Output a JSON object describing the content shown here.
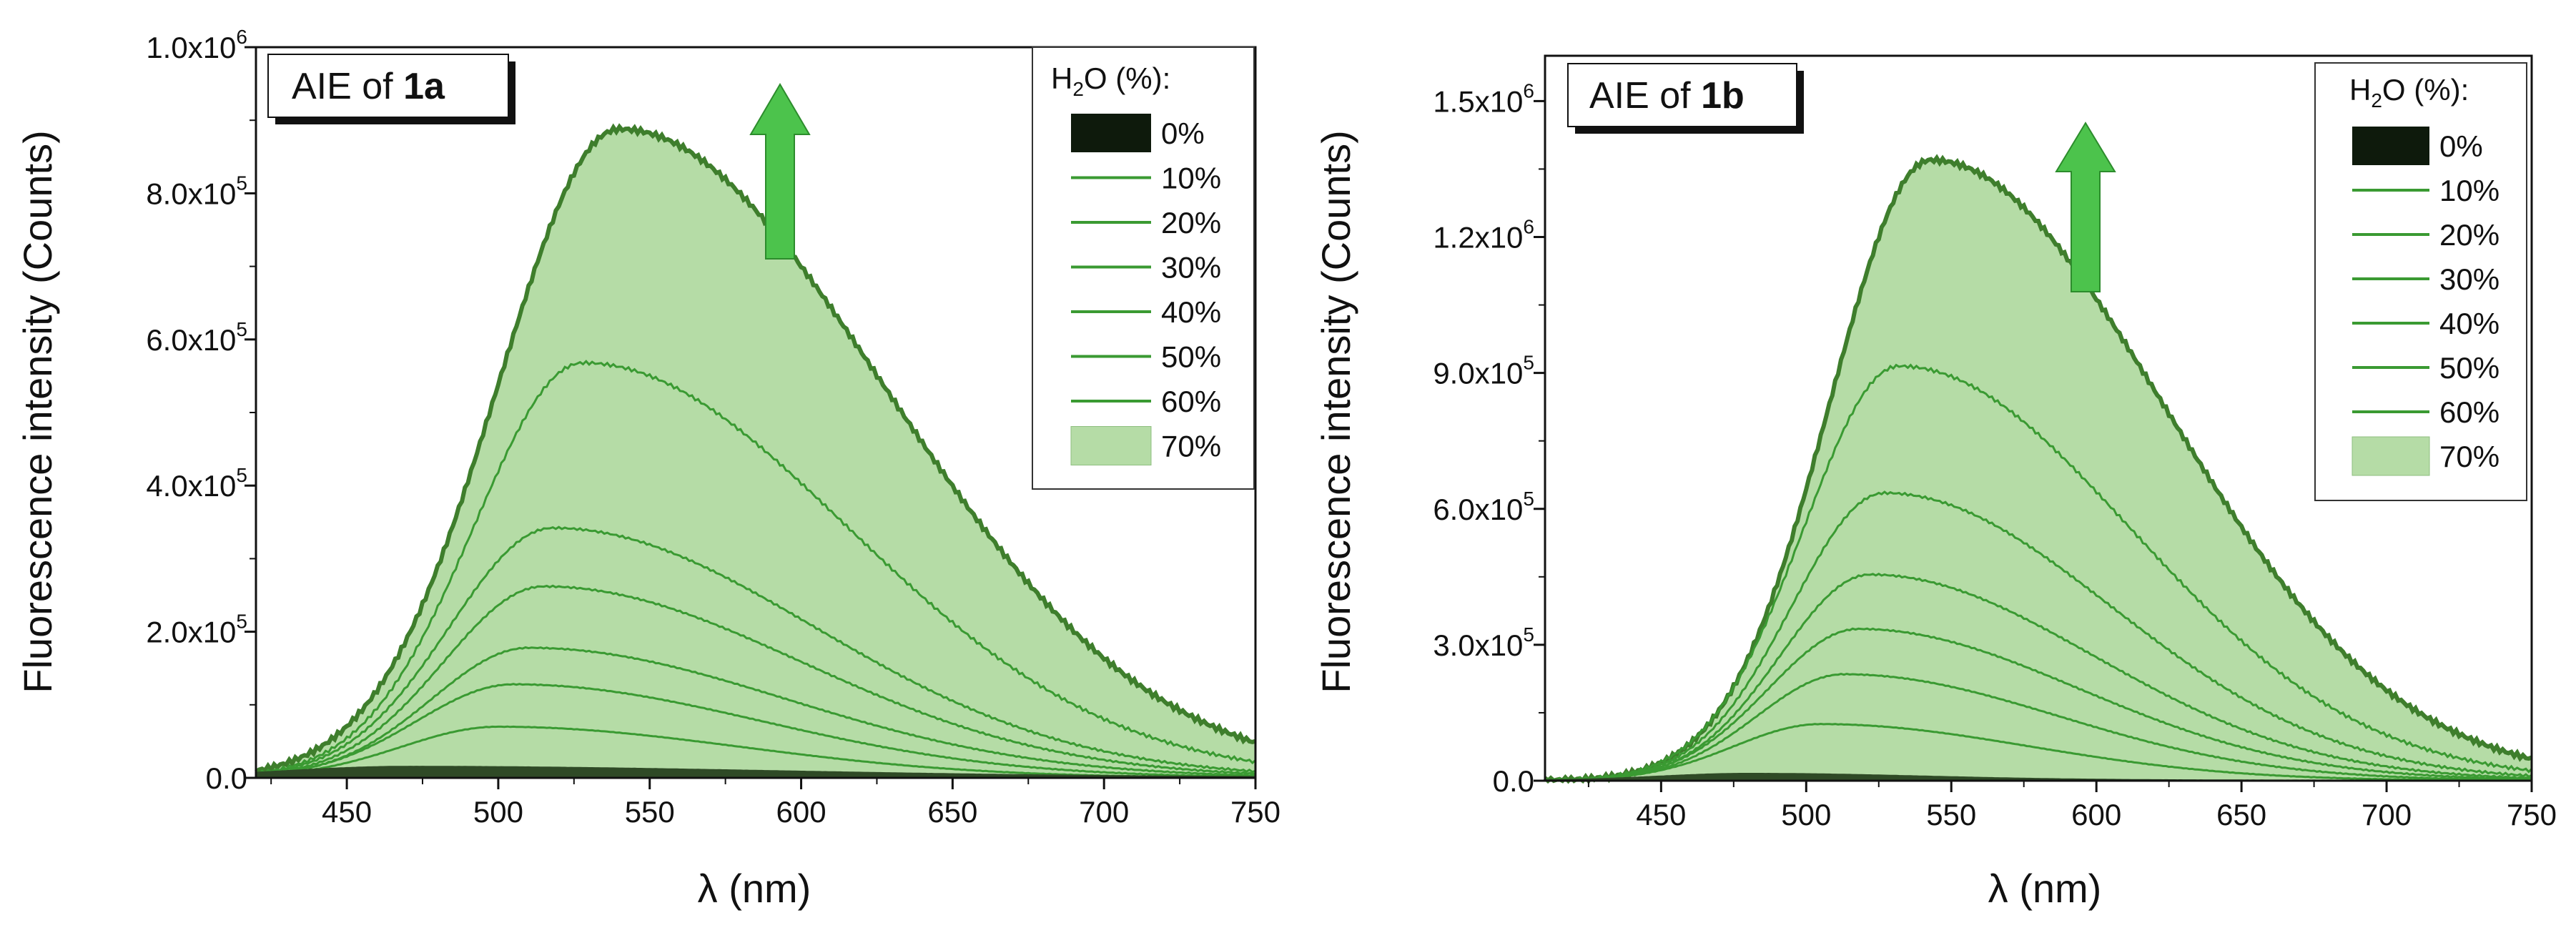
{
  "chart_data": [
    {
      "type": "line",
      "title_prefix": "AIE of ",
      "title_compound": "1a",
      "xlabel_symbol": "λ",
      "xlabel_unit": "(nm)",
      "ylabel": "Fluorescence intensity (Counts)",
      "xlim": [
        420,
        750
      ],
      "ylim": [
        0,
        1000000
      ],
      "x_ticks": [
        {
          "value": 450,
          "label": "450"
        },
        {
          "value": 500,
          "label": "500"
        },
        {
          "value": 550,
          "label": "550"
        },
        {
          "value": 600,
          "label": "600"
        },
        {
          "value": 650,
          "label": "650"
        },
        {
          "value": 700,
          "label": "700"
        },
        {
          "value": 750,
          "label": "750"
        }
      ],
      "y_ticks": [
        {
          "value": 0,
          "label": "0.0",
          "exp": ""
        },
        {
          "value": 200000,
          "label": "2.0x10",
          "exp": "5"
        },
        {
          "value": 400000,
          "label": "4.0x10",
          "exp": "5"
        },
        {
          "value": 600000,
          "label": "6.0x10",
          "exp": "5"
        },
        {
          "value": 800000,
          "label": "8.0x10",
          "exp": "5"
        },
        {
          "value": 1000000,
          "label": "1.0x10",
          "exp": "6"
        }
      ],
      "legend_title": "H2O (%):",
      "legend_position": "top-right",
      "series": [
        {
          "name": "0%",
          "peak_x": 470,
          "peak_y": 15000,
          "sigma_l": 40,
          "sigma_r": 120
        },
        {
          "name": "10%",
          "peak_x": 500,
          "peak_y": 70000,
          "sigma_l": 32,
          "sigma_r": 80
        },
        {
          "name": "20%",
          "peak_x": 505,
          "peak_y": 128000,
          "sigma_l": 32,
          "sigma_r": 82
        },
        {
          "name": "30%",
          "peak_x": 510,
          "peak_y": 178000,
          "sigma_l": 32,
          "sigma_r": 85
        },
        {
          "name": "40%",
          "peak_x": 515,
          "peak_y": 262000,
          "sigma_l": 33,
          "sigma_r": 85
        },
        {
          "name": "50%",
          "peak_x": 518,
          "peak_y": 342000,
          "sigma_l": 34,
          "sigma_r": 86
        },
        {
          "name": "60%",
          "peak_x": 528,
          "peak_y": 568000,
          "sigma_l": 36,
          "sigma_r": 87
        },
        {
          "name": "70%",
          "peak_x": 540,
          "peak_y": 888000,
          "sigma_l": 40,
          "sigma_r": 87
        }
      ]
    },
    {
      "type": "line",
      "title_prefix": "AIE of ",
      "title_compound": "1b",
      "xlabel_symbol": "λ",
      "xlabel_unit": "(nm)",
      "ylabel": "Fluorescence intensity (Counts)",
      "xlim": [
        410,
        750
      ],
      "ylim": [
        0,
        1600000
      ],
      "x_ticks": [
        {
          "value": 450,
          "label": "450"
        },
        {
          "value": 500,
          "label": "500"
        },
        {
          "value": 550,
          "label": "550"
        },
        {
          "value": 600,
          "label": "600"
        },
        {
          "value": 650,
          "label": "650"
        },
        {
          "value": 700,
          "label": "700"
        },
        {
          "value": 750,
          "label": "750"
        }
      ],
      "y_ticks": [
        {
          "value": 0,
          "label": "0.0",
          "exp": ""
        },
        {
          "value": 300000,
          "label": "3.0x10",
          "exp": "5"
        },
        {
          "value": 600000,
          "label": "6.0x10",
          "exp": "5"
        },
        {
          "value": 900000,
          "label": "9.0x10",
          "exp": "5"
        },
        {
          "value": 1200000,
          "label": "1.2x10",
          "exp": "6"
        },
        {
          "value": 1500000,
          "label": "1.5x10",
          "exp": "6"
        }
      ],
      "legend_title": "H2O (%):",
      "legend_position": "top-right",
      "series": [
        {
          "name": "0%",
          "peak_x": 480,
          "peak_y": 15000,
          "sigma_l": 30,
          "sigma_r": 60
        },
        {
          "name": "10%",
          "peak_x": 505,
          "peak_y": 125000,
          "sigma_l": 30,
          "sigma_r": 72
        },
        {
          "name": "20%",
          "peak_x": 513,
          "peak_y": 235000,
          "sigma_l": 30,
          "sigma_r": 74
        },
        {
          "name": "30%",
          "peak_x": 518,
          "peak_y": 335000,
          "sigma_l": 31,
          "sigma_r": 76
        },
        {
          "name": "40%",
          "peak_x": 522,
          "peak_y": 455000,
          "sigma_l": 31,
          "sigma_r": 77
        },
        {
          "name": "50%",
          "peak_x": 527,
          "peak_y": 635000,
          "sigma_l": 32,
          "sigma_r": 78
        },
        {
          "name": "60%",
          "peak_x": 532,
          "peak_y": 915000,
          "sigma_l": 33,
          "sigma_r": 80
        },
        {
          "name": "70%",
          "peak_x": 543,
          "peak_y": 1370000,
          "sigma_l": 35,
          "sigma_r": 80
        }
      ]
    }
  ],
  "colors": {
    "fill_70": "#b5dca6",
    "line_70": "#3e7e2c",
    "line_series": "#3a9a32",
    "baseline_0": "#2f4a26",
    "legend_0": "#0e1a0c",
    "arrow": "#4cc34c",
    "arrow_edge": "#2c8c2c"
  }
}
